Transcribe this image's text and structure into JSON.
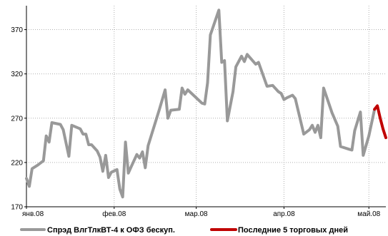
{
  "chart_data": {
    "type": "line",
    "ylim": [
      170,
      397
    ],
    "xlim": [
      "2008-01-01",
      "2008-05-07"
    ],
    "y_ticks": [
      170,
      220,
      270,
      320,
      370
    ],
    "x_ticks": [
      {
        "date": "2008-01-01",
        "label": "янв.08"
      },
      {
        "date": "2008-02-01",
        "label": "фев.08"
      },
      {
        "date": "2008-03-01",
        "label": "мар.08"
      },
      {
        "date": "2008-04-01",
        "label": "апр.08"
      },
      {
        "date": "2008-05-01",
        "label": "май.08"
      }
    ],
    "grid": true,
    "legend_position": "bottom",
    "series": [
      {
        "name": "Спрэд ВлгТлкВТ-4 к ОФЗ бескуп.",
        "color": "#999999",
        "points": [
          [
            "2008-01-01",
            202
          ],
          [
            "2008-01-02",
            193
          ],
          [
            "2008-01-03",
            213
          ],
          [
            "2008-01-05",
            217
          ],
          [
            "2008-01-07",
            222
          ],
          [
            "2008-01-08",
            250
          ],
          [
            "2008-01-09",
            243
          ],
          [
            "2008-01-10",
            265
          ],
          [
            "2008-01-13",
            263
          ],
          [
            "2008-01-14",
            257
          ],
          [
            "2008-01-16",
            227
          ],
          [
            "2008-01-17",
            262
          ],
          [
            "2008-01-20",
            258
          ],
          [
            "2008-01-21",
            252
          ],
          [
            "2008-01-22",
            252
          ],
          [
            "2008-01-23",
            240
          ],
          [
            "2008-01-24",
            240
          ],
          [
            "2008-01-26",
            233
          ],
          [
            "2008-01-27",
            226
          ],
          [
            "2008-01-28",
            210
          ],
          [
            "2008-01-29",
            228
          ],
          [
            "2008-01-30",
            203
          ],
          [
            "2008-01-31",
            209
          ],
          [
            "2008-02-02",
            212
          ],
          [
            "2008-02-03",
            190
          ],
          [
            "2008-02-04",
            181
          ],
          [
            "2008-02-05",
            243
          ],
          [
            "2008-02-06",
            208
          ],
          [
            "2008-02-07",
            215
          ],
          [
            "2008-02-09",
            229
          ],
          [
            "2008-02-10",
            225
          ],
          [
            "2008-02-11",
            232
          ],
          [
            "2008-02-12",
            214
          ],
          [
            "2008-02-13",
            239
          ],
          [
            "2008-02-17",
            280
          ],
          [
            "2008-02-19",
            302
          ],
          [
            "2008-02-20",
            270
          ],
          [
            "2008-02-21",
            279
          ],
          [
            "2008-02-24",
            280
          ],
          [
            "2008-02-25",
            304
          ],
          [
            "2008-02-26",
            297
          ],
          [
            "2008-02-27",
            302
          ],
          [
            "2008-03-03",
            287
          ],
          [
            "2008-03-04",
            286
          ],
          [
            "2008-03-05",
            310
          ],
          [
            "2008-03-06",
            364
          ],
          [
            "2008-03-09",
            392
          ],
          [
            "2008-03-10",
            333
          ],
          [
            "2008-03-11",
            335
          ],
          [
            "2008-03-12",
            267
          ],
          [
            "2008-03-14",
            300
          ],
          [
            "2008-03-15",
            328
          ],
          [
            "2008-03-17",
            340
          ],
          [
            "2008-03-18",
            334
          ],
          [
            "2008-03-19",
            342
          ],
          [
            "2008-03-22",
            331
          ],
          [
            "2008-03-23",
            333
          ],
          [
            "2008-03-26",
            306
          ],
          [
            "2008-03-28",
            307
          ],
          [
            "2008-03-30",
            300
          ],
          [
            "2008-03-31",
            298
          ],
          [
            "2008-04-01",
            291
          ],
          [
            "2008-04-02",
            293
          ],
          [
            "2008-04-04",
            296
          ],
          [
            "2008-04-05",
            292
          ],
          [
            "2008-04-08",
            252
          ],
          [
            "2008-04-10",
            257
          ],
          [
            "2008-04-11",
            262
          ],
          [
            "2008-04-12",
            254
          ],
          [
            "2008-04-13",
            262
          ],
          [
            "2008-04-14",
            248
          ],
          [
            "2008-04-15",
            304
          ],
          [
            "2008-04-18",
            276
          ],
          [
            "2008-04-20",
            261
          ],
          [
            "2008-04-21",
            238
          ],
          [
            "2008-04-24",
            235
          ],
          [
            "2008-04-25",
            234
          ],
          [
            "2008-04-26",
            256
          ],
          [
            "2008-04-28",
            277
          ],
          [
            "2008-04-29",
            228
          ],
          [
            "2008-05-01",
            250
          ],
          [
            "2008-05-03",
            280
          ]
        ]
      },
      {
        "name": "Последние 5 торговых дней",
        "color": "#c00000",
        "points": [
          [
            "2008-05-03",
            280
          ],
          [
            "2008-05-04",
            284
          ],
          [
            "2008-05-05",
            270
          ],
          [
            "2008-05-06",
            258
          ],
          [
            "2008-05-07",
            248
          ]
        ]
      }
    ]
  }
}
